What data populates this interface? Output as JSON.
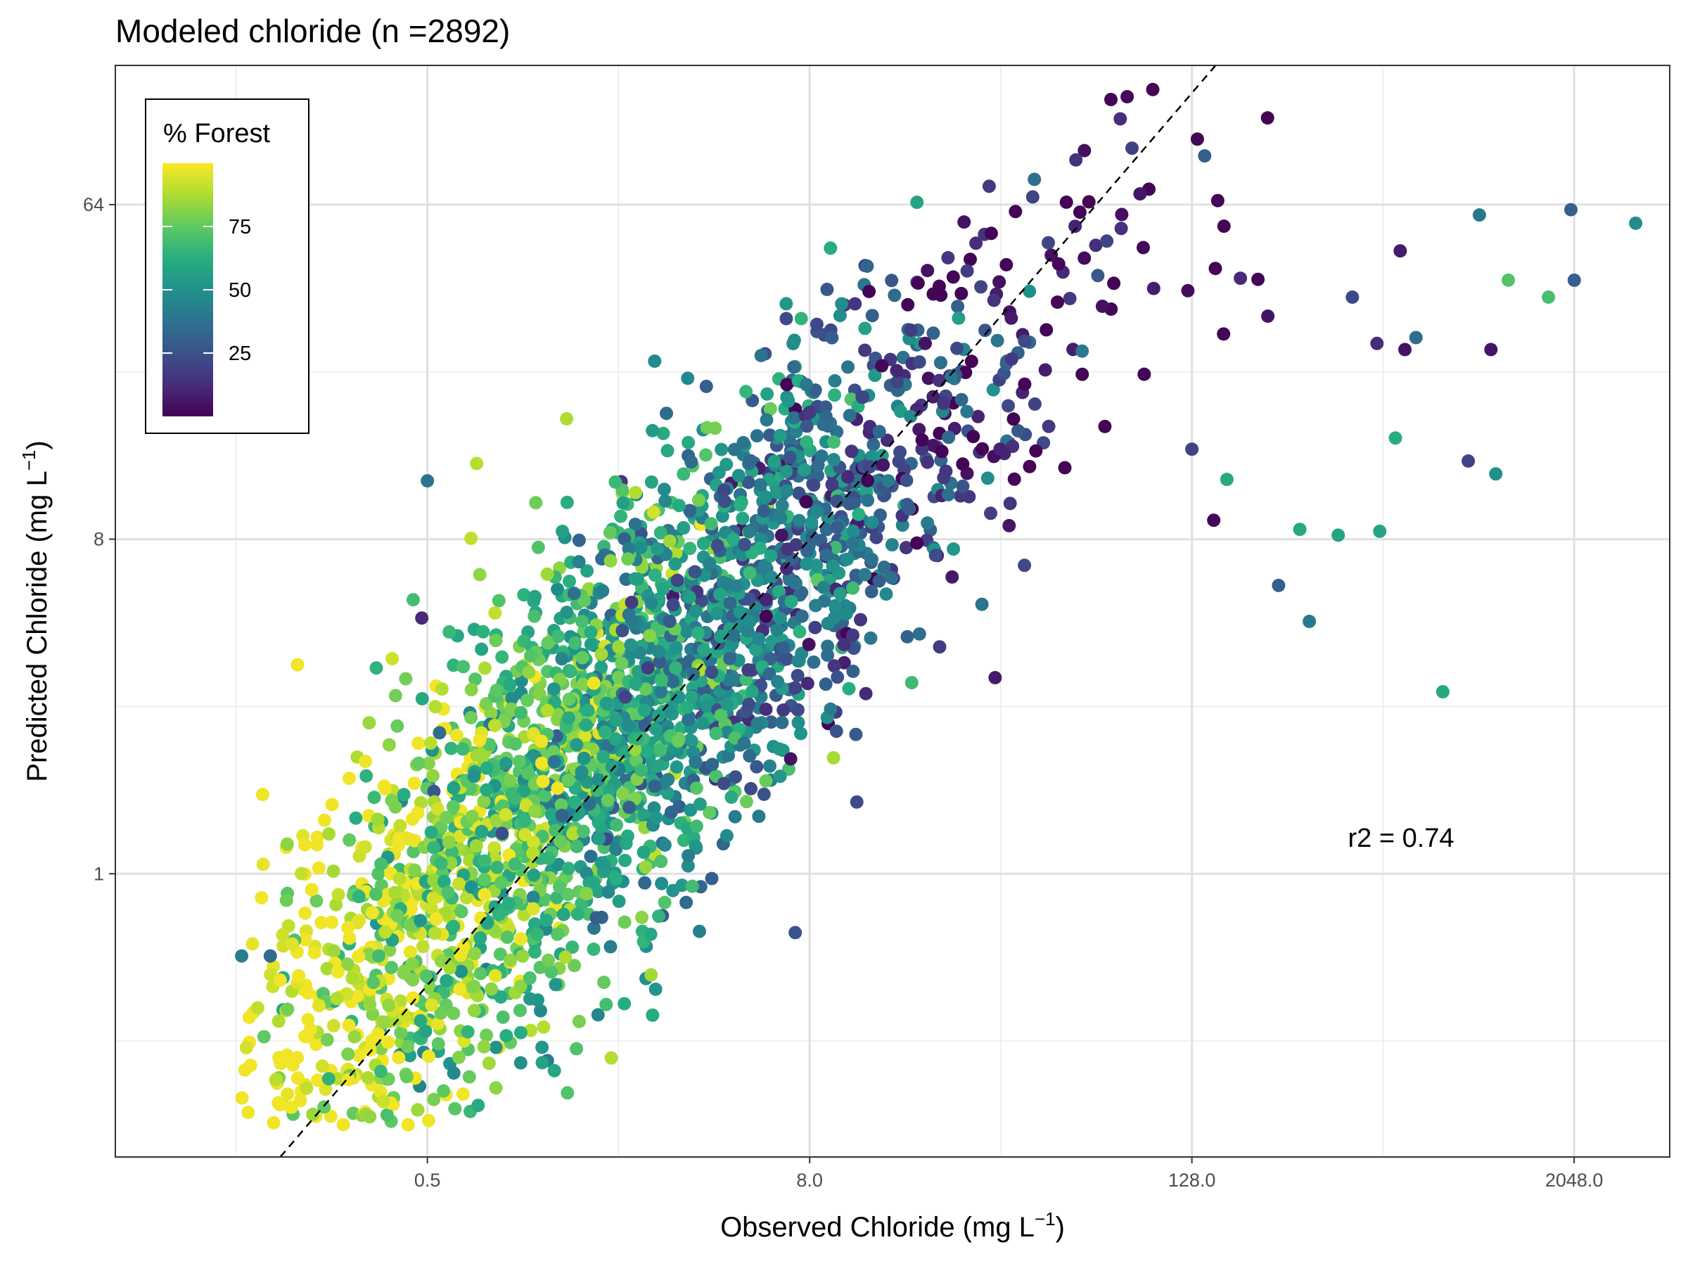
{
  "chart_data": {
    "type": "scatter",
    "title": "Modeled chloride (n =2892)",
    "xlabel": {
      "main": "Observed Chloride (",
      "unit": "mg L",
      "exp": "−1",
      "close": ")"
    },
    "ylabel": {
      "main": "Predicted Chloride (",
      "unit": "mg L",
      "exp": "−1",
      "close": ")"
    },
    "x_scale": "log2",
    "y_scale": "log2",
    "xlim": [
      0.052,
      4096
    ],
    "ylim": [
      0.172,
      152
    ],
    "x_ticks": [
      {
        "value": 0.5,
        "label": "0.5"
      },
      {
        "value": 8,
        "label": "8.0"
      },
      {
        "value": 128,
        "label": "128.0"
      },
      {
        "value": 2048,
        "label": "2048.0"
      }
    ],
    "y_ticks": [
      {
        "value": 1,
        "label": "1"
      },
      {
        "value": 8,
        "label": "8"
      },
      {
        "value": 64,
        "label": "64"
      }
    ],
    "grid": true,
    "reference_line": {
      "style": "dashed",
      "slope": 1,
      "intercept": 0
    },
    "annotation": "r2 = 0.74",
    "legend": {
      "title": "% Forest",
      "placement": "top-left",
      "ticks": [
        {
          "value": 25,
          "label": "25"
        },
        {
          "value": 50,
          "label": "50"
        },
        {
          "value": 75,
          "label": "75"
        }
      ],
      "range": [
        0,
        100
      ],
      "colormap": [
        "#440154",
        "#472d7b",
        "#3b528b",
        "#2c728e",
        "#21918c",
        "#28ae80",
        "#5ec962",
        "#addc30",
        "#fde725"
      ]
    },
    "outliers": [
      {
        "x": 0.13,
        "y": 0.6,
        "forest": 42
      },
      {
        "x": 0.16,
        "y": 0.6,
        "forest": 35
      },
      {
        "x": 0.17,
        "y": 0.4,
        "forest": 88
      },
      {
        "x": 2.1,
        "y": 3.0,
        "forest": 20
      },
      {
        "x": 2.2,
        "y": 5.4,
        "forest": 18
      },
      {
        "x": 2.9,
        "y": 4.8,
        "forest": 28
      },
      {
        "x": 3.5,
        "y": 2.0,
        "forest": 40
      },
      {
        "x": 3.8,
        "y": 16,
        "forest": 78
      },
      {
        "x": 0.5,
        "y": 11.5,
        "forest": 38
      },
      {
        "x": 0.48,
        "y": 4.9,
        "forest": 12
      },
      {
        "x": 13.5,
        "y": 23.5,
        "forest": 2
      },
      {
        "x": 18.5,
        "y": 27.0,
        "forest": 5
      },
      {
        "x": 34,
        "y": 8.7,
        "forest": 6
      },
      {
        "x": 38,
        "y": 6.8,
        "forest": 22
      },
      {
        "x": 97,
        "y": 38,
        "forest": 8
      },
      {
        "x": 128,
        "y": 14,
        "forest": 20
      },
      {
        "x": 150,
        "y": 9.0,
        "forest": 2
      },
      {
        "x": 165,
        "y": 11.6,
        "forest": 60
      },
      {
        "x": 182,
        "y": 40.5,
        "forest": 12
      },
      {
        "x": 222,
        "y": 32,
        "forest": 5
      },
      {
        "x": 240,
        "y": 6.0,
        "forest": 30
      },
      {
        "x": 280,
        "y": 8.5,
        "forest": 60
      },
      {
        "x": 300,
        "y": 4.8,
        "forest": 40
      },
      {
        "x": 370,
        "y": 8.2,
        "forest": 58
      },
      {
        "x": 410,
        "y": 36,
        "forest": 22
      },
      {
        "x": 490,
        "y": 27,
        "forest": 12
      },
      {
        "x": 500,
        "y": 8.4,
        "forest": 58
      },
      {
        "x": 560,
        "y": 15,
        "forest": 62
      },
      {
        "x": 580,
        "y": 48,
        "forest": 8
      },
      {
        "x": 600,
        "y": 26,
        "forest": 5
      },
      {
        "x": 650,
        "y": 28,
        "forest": 35
      },
      {
        "x": 790,
        "y": 3.1,
        "forest": 60
      },
      {
        "x": 950,
        "y": 13,
        "forest": 20
      },
      {
        "x": 1030,
        "y": 60,
        "forest": 40
      },
      {
        "x": 1120,
        "y": 26,
        "forest": 6
      },
      {
        "x": 1160,
        "y": 12,
        "forest": 50
      },
      {
        "x": 2000,
        "y": 62,
        "forest": 30
      },
      {
        "x": 2050,
        "y": 40,
        "forest": 30
      },
      {
        "x": 3200,
        "y": 57,
        "forest": 48
      },
      {
        "x": 1270,
        "y": 40,
        "forest": 72
      },
      {
        "x": 1700,
        "y": 36,
        "forest": 70
      }
    ]
  }
}
